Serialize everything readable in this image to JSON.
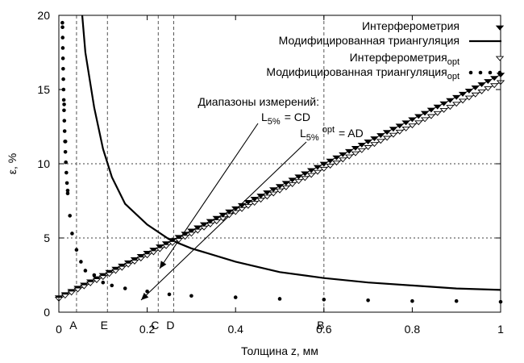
{
  "chart_data": {
    "type": "line",
    "xlabel": "Толщина z, мм",
    "ylabel": "ε, %",
    "xlim": [
      0,
      1
    ],
    "ylim": [
      0,
      20
    ],
    "x_ticks": [
      0,
      0.2,
      0.4,
      0.6,
      0.8,
      1
    ],
    "x_tick_labels": [
      "0",
      "0.2",
      "0.4",
      "0.6",
      "0.8",
      "1"
    ],
    "y_ticks": [
      0,
      5,
      10,
      15,
      20
    ],
    "y_tick_labels": [
      "0",
      "5",
      "10",
      "15",
      "20"
    ],
    "grid": "horizontal dotted at 5 and 10",
    "legend_position": "top-right",
    "series": [
      {
        "name": "Интерферометрия",
        "name_sub": "",
        "style": "filled-triangle-down",
        "color": "#000000",
        "x": [
          0,
          0.05,
          0.1,
          0.15,
          0.2,
          0.25,
          0.3,
          0.35,
          0.4,
          0.45,
          0.5,
          0.55,
          0.6,
          0.65,
          0.7,
          0.75,
          0.8,
          0.85,
          0.9,
          0.95,
          1.0
        ],
        "y": [
          1.0,
          1.75,
          2.5,
          3.25,
          4.0,
          4.75,
          5.5,
          6.25,
          7.0,
          7.75,
          8.5,
          9.25,
          10.0,
          10.75,
          11.5,
          12.25,
          13.0,
          13.75,
          14.5,
          15.25,
          16.0
        ]
      },
      {
        "name": "Модифицированная триангуляция",
        "name_sub": "",
        "style": "solid-line",
        "color": "#000000",
        "x": [
          0.053,
          0.06,
          0.08,
          0.1,
          0.12,
          0.15,
          0.2,
          0.25,
          0.3,
          0.4,
          0.5,
          0.6,
          0.7,
          0.8,
          0.9,
          1.0
        ],
        "y": [
          20.0,
          17.5,
          13.8,
          11.0,
          9.1,
          7.3,
          5.9,
          4.9,
          4.3,
          3.4,
          2.7,
          2.3,
          2.0,
          1.8,
          1.6,
          1.5
        ]
      },
      {
        "name": "Интерферометрия",
        "name_sub": "opt",
        "style": "open-triangle-down",
        "color": "#000000",
        "x": [
          0,
          0.05,
          0.1,
          0.15,
          0.2,
          0.25,
          0.3,
          0.35,
          0.4,
          0.45,
          0.5,
          0.55,
          0.6,
          0.65,
          0.7,
          0.75,
          0.8,
          0.85,
          0.9,
          0.95,
          1.0
        ],
        "y": [
          0.9,
          1.63,
          2.36,
          3.09,
          3.82,
          4.55,
          5.28,
          6.01,
          6.74,
          7.47,
          8.2,
          8.93,
          9.66,
          10.39,
          11.12,
          11.85,
          12.58,
          13.31,
          14.04,
          14.77,
          15.5
        ]
      },
      {
        "name": "Модифицированная триангуляция",
        "name_sub": "opt",
        "style": "dots",
        "color": "#000000",
        "x": [
          0.008,
          0.012,
          0.015,
          0.02,
          0.025,
          0.03,
          0.04,
          0.05,
          0.06,
          0.08,
          0.1,
          0.12,
          0.15,
          0.2,
          0.25,
          0.3,
          0.4,
          0.5,
          0.6,
          0.7,
          0.8,
          0.9,
          1.0
        ],
        "y": [
          19.5,
          14.0,
          11.5,
          8.2,
          6.5,
          5.3,
          4.2,
          3.4,
          2.8,
          2.5,
          2.0,
          1.8,
          1.6,
          1.4,
          1.2,
          1.1,
          1.0,
          0.9,
          0.85,
          0.8,
          0.75,
          0.75,
          0.7
        ]
      }
    ],
    "reference_lines": [
      {
        "label": "A",
        "x": 0.04
      },
      {
        "label": "E",
        "x": 0.11
      },
      {
        "label": "C",
        "x": 0.225
      },
      {
        "label": "D",
        "x": 0.26
      },
      {
        "label": "B",
        "x": 0.6
      }
    ],
    "annotations": {
      "title_line": "Диапазоны измерений:",
      "line1_main": "L",
      "line1_sub": "5%",
      "line1_rest": "= CD",
      "line2_main": "L",
      "line2_sub": "5%",
      "line2_sup": "opt",
      "line2_rest": "= AD"
    }
  }
}
